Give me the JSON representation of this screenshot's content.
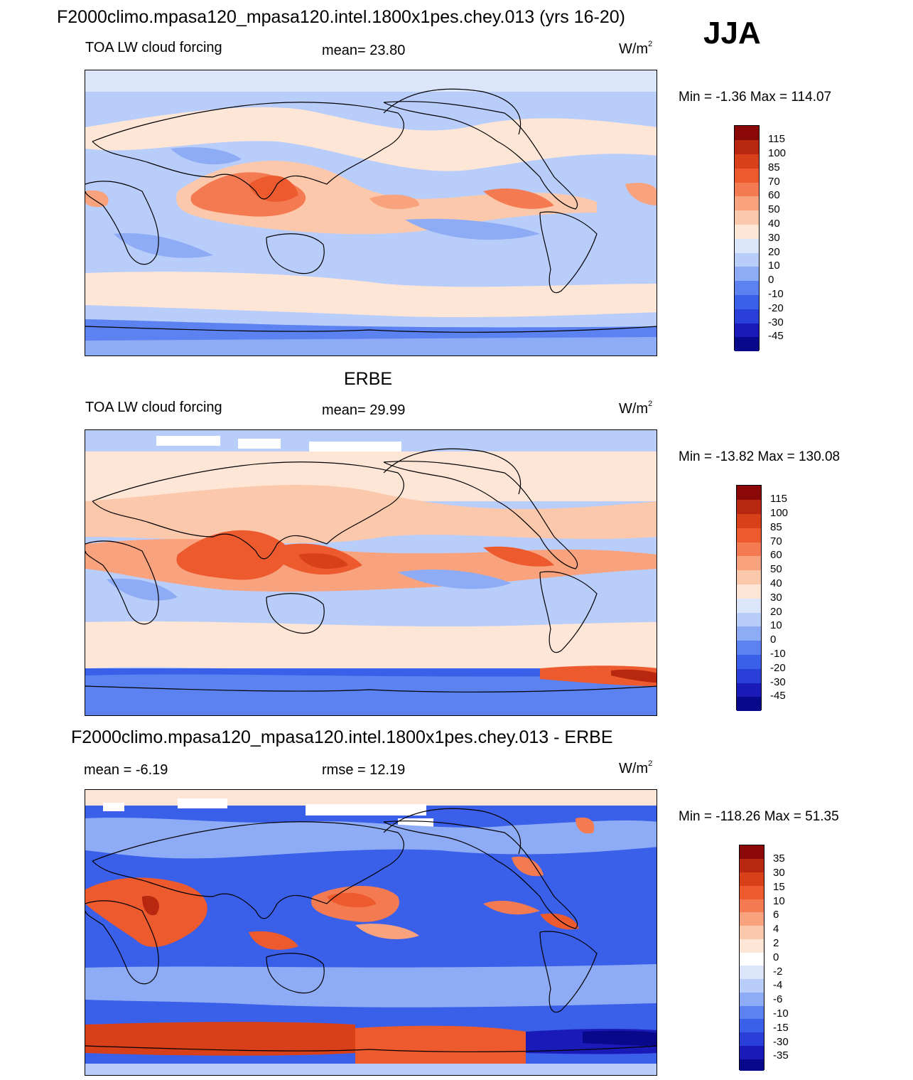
{
  "main_title": "F2000climo.mpasa120_mpasa120.intel.1800x1pes.chey.013 (yrs 16-20)",
  "season": "JJA",
  "units": {
    "base": "W/m",
    "exp": "2"
  },
  "colors": {
    "abs_scale": [
      "#08088a",
      "#1a1ab8",
      "#2a3fd8",
      "#3a5fe8",
      "#5b82f0",
      "#8eacf5",
      "#b9cdfb",
      "#dce6fb",
      "#fde6d6",
      "#fcc8ab",
      "#f9a27e",
      "#f47a52",
      "#ec5a2e",
      "#d8401a",
      "#b82810",
      "#8a0808"
    ],
    "diff_scale": [
      "#08088a",
      "#1a1ab8",
      "#2a3fd8",
      "#3a5fe8",
      "#5b82f0",
      "#8eacf5",
      "#b9cdfb",
      "#dce6fb",
      "#ffffff",
      "#fde6d6",
      "#fcc8ab",
      "#f9a27e",
      "#f47a52",
      "#ec5a2e",
      "#d8401a",
      "#b82810",
      "#8a0808"
    ]
  },
  "panels": [
    {
      "title": "",
      "variable": "TOA LW cloud forcing",
      "stat": "mean=  23.80",
      "minmax": "Min =  -1.36 Max = 114.07",
      "levels": [
        "115",
        "100",
        "85",
        "70",
        "60",
        "50",
        "40",
        "30",
        "20",
        "10",
        "0",
        "-10",
        "-20",
        "-30",
        "-45"
      ]
    },
    {
      "title": "ERBE",
      "variable": "TOA LW cloud forcing",
      "stat": "mean=  29.99",
      "minmax": "Min = -13.82 Max = 130.08",
      "levels": [
        "115",
        "100",
        "85",
        "70",
        "60",
        "50",
        "40",
        "30",
        "20",
        "10",
        "0",
        "-10",
        "-20",
        "-30",
        "-45"
      ]
    },
    {
      "title": "F2000climo.mpasa120_mpasa120.intel.1800x1pes.chey.013 - ERBE",
      "variable": "mean =  -6.19",
      "stat": "rmse =  12.19",
      "minmax": "Min = -118.26 Max =  51.35",
      "levels": [
        "35",
        "30",
        "15",
        "10",
        "6",
        "4",
        "2",
        "0",
        "-2",
        "-4",
        "-6",
        "-10",
        "-15",
        "-30",
        "-35"
      ]
    }
  ]
}
